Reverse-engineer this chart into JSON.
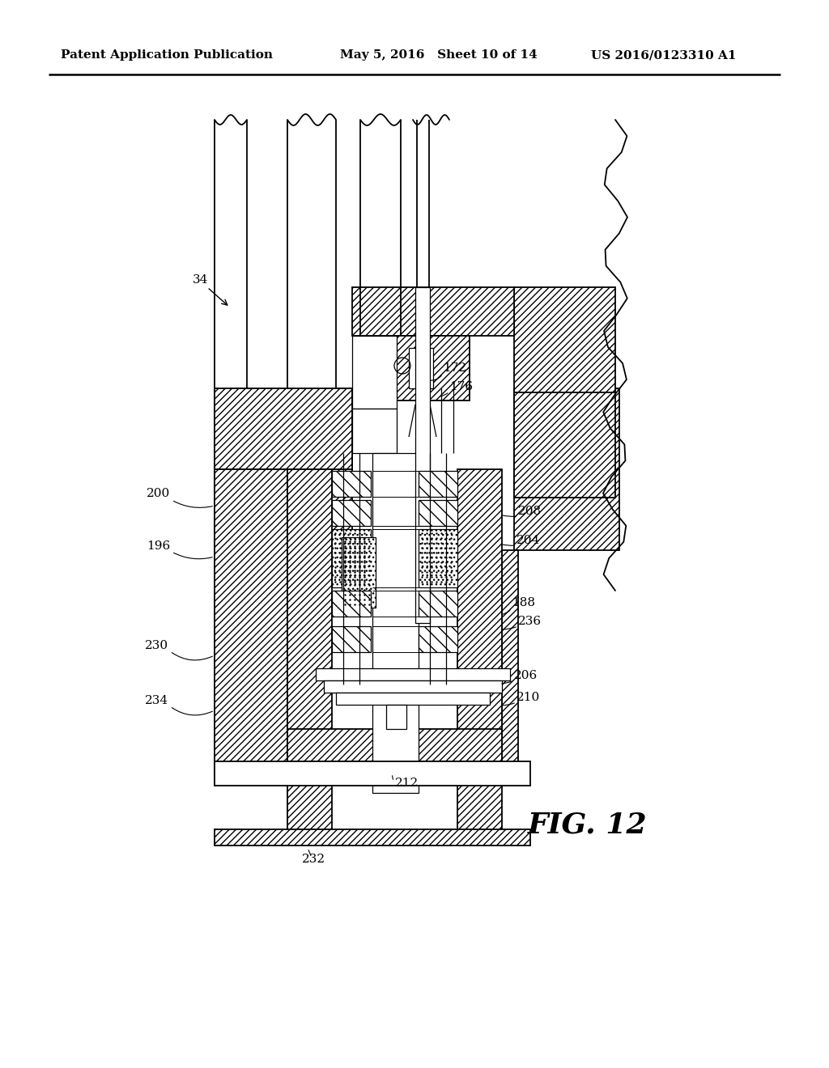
{
  "header_left": "Patent Application Publication",
  "header_mid": "May 5, 2016   Sheet 10 of 14",
  "header_right": "US 2016/0123310 A1",
  "fig_label": "FIG. 12",
  "background_color": "#ffffff"
}
